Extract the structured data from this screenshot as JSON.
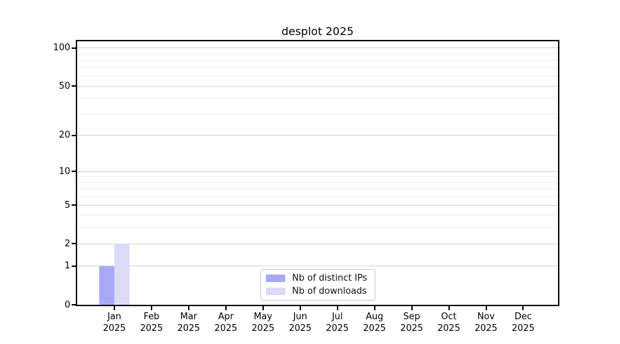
{
  "chart_data": {
    "type": "bar",
    "title": "desplot 2025",
    "x_tick_months": [
      "Jan",
      "Feb",
      "Mar",
      "Apr",
      "May",
      "Jun",
      "Jul",
      "Aug",
      "Sep",
      "Oct",
      "Nov",
      "Dec"
    ],
    "x_tick_year": "2025",
    "y_scale": "log1p",
    "y_major_ticks": [
      100,
      50,
      20,
      10,
      5,
      2,
      1,
      0
    ],
    "y_minor_gridlines": [
      90,
      80,
      70,
      60,
      40,
      30,
      9,
      8,
      7,
      6,
      4,
      3
    ],
    "ylim": [
      0,
      113.3
    ],
    "grid": "horizontal-only",
    "legend_position": "lower center",
    "series": [
      {
        "name": "Nb of distinct IPs",
        "color": "#a9a9f3",
        "values": [
          1,
          0,
          0,
          0,
          0,
          0,
          0,
          0,
          0,
          0,
          0,
          0
        ]
      },
      {
        "name": "Nb of downloads",
        "color": "#dbdbf8",
        "values": [
          2,
          0,
          0,
          0,
          0,
          0,
          0,
          0,
          0,
          0,
          0,
          0
        ]
      }
    ],
    "colors": {
      "major_grid": "#d2d2d2",
      "minor_grid": "#ededed",
      "spine": "#000000",
      "text": "#000000"
    }
  }
}
